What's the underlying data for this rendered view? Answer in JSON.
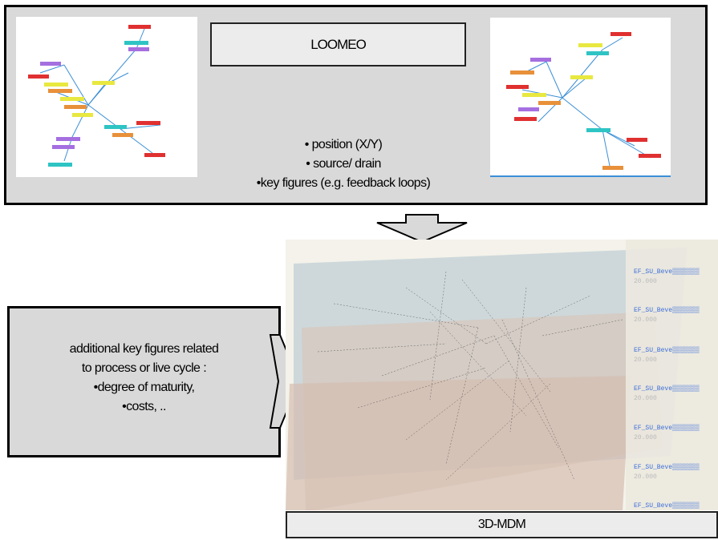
{
  "top_title": "LOOMEO",
  "top_bullets": [
    "• position (X/Y)",
    "• source/ drain",
    "•key figures (e.g. feedback loops)"
  ],
  "side_lines": [
    "additional key figures related",
    "to process or live cycle :",
    "•degree of maturity,",
    "•costs, .."
  ],
  "bottom_label": "3D-MDM"
}
